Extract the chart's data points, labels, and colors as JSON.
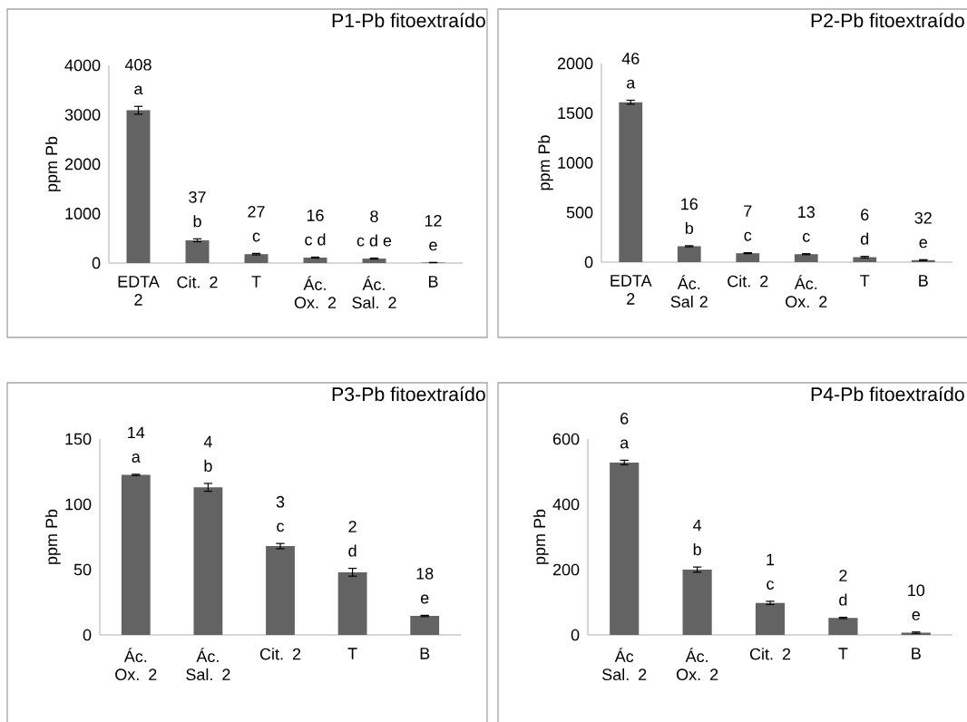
{
  "chart_data": [
    {
      "type": "bar",
      "title": "P1-Pb fitoextraído",
      "ylabel": "ppm Pb",
      "categories": [
        "EDTA 2",
        "Cit. 2",
        "T",
        "Ác. Ox. 2",
        "Ác. Sal. 2",
        "B"
      ],
      "values": [
        3090,
        460,
        180,
        110,
        90,
        10
      ],
      "errors": [
        80,
        30,
        15,
        10,
        10,
        3
      ],
      "color": "#636363",
      "ylim": [
        0,
        4000
      ],
      "yticks": [
        0,
        1000,
        2000,
        3000,
        4000
      ],
      "annotations": [
        "408",
        "a",
        "37",
        "b",
        "27",
        "c",
        "16",
        "c d",
        "8",
        "c d e",
        "12",
        "e"
      ]
    },
    {
      "type": "bar",
      "title": "P2-Pb fitoextraído",
      "ylabel": "ppm Pb",
      "categories": [
        "EDTA 2",
        "Ác. Sal 2",
        "Cit. 2",
        "Ác. Ox. 2",
        "T",
        "B"
      ],
      "values": [
        1610,
        160,
        90,
        80,
        50,
        20
      ],
      "errors": [
        20,
        5,
        5,
        5,
        8,
        5
      ],
      "color": "#636363",
      "ylim": [
        0,
        2000
      ],
      "yticks": [
        0,
        500,
        1000,
        1500,
        2000
      ],
      "annotations": [
        "46",
        "a",
        "16",
        "b",
        "7",
        "c",
        "13",
        "c",
        "6",
        "d",
        "32",
        "e"
      ]
    },
    {
      "type": "bar",
      "title": "P3-Pb fitoextraído",
      "ylabel": "ppm Pb",
      "categories": [
        "Ác. Ox. 2",
        "Ác. Sal. 2",
        "Cit. 2",
        "T",
        "B"
      ],
      "values": [
        122.5,
        113,
        68,
        48,
        14.5
      ],
      "errors": [
        0.5,
        3,
        2,
        3,
        0.5
      ],
      "color": "#636363",
      "ylim": [
        0,
        150
      ],
      "yticks": [
        0,
        50,
        100,
        150
      ],
      "annotations": [
        "14",
        "a",
        "4",
        "b",
        "3",
        "c",
        "2",
        "d",
        "18",
        "e"
      ]
    },
    {
      "type": "bar",
      "title": "P4-Pb fitoextraído",
      "ylabel": "ppm Pb",
      "categories": [
        "Ác Sal. 2",
        "Ác. Ox. 2",
        "Cit. 2",
        "T",
        "B"
      ],
      "values": [
        528,
        200,
        98,
        52,
        7
      ],
      "errors": [
        7,
        8,
        5,
        2,
        2
      ],
      "color": "#636363",
      "ylim": [
        0,
        600
      ],
      "yticks": [
        0,
        200,
        400,
        600
      ],
      "annotations": [
        "6",
        "a",
        "4",
        "b",
        "1",
        "c",
        "2",
        "d",
        "10",
        "e"
      ]
    }
  ]
}
